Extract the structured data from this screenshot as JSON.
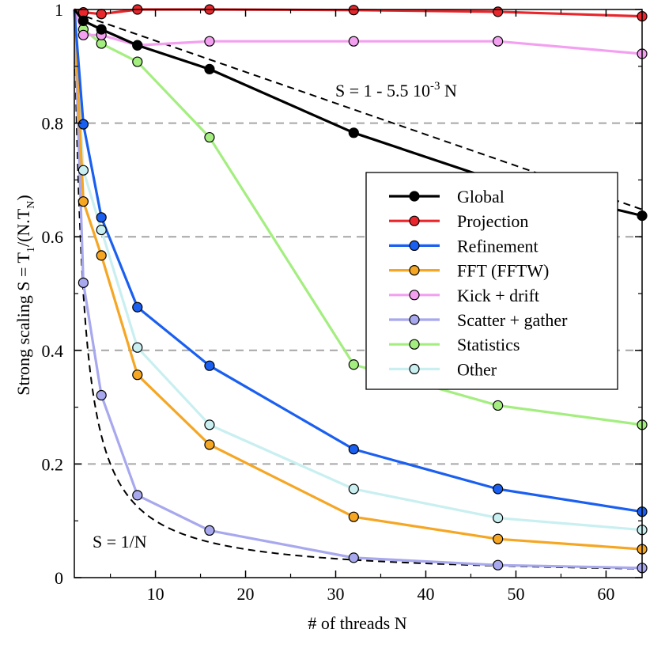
{
  "chart_data": {
    "type": "line",
    "title": "",
    "xlabel": "# of threads N",
    "ylabel": "Strong scaling S = T",
    "ylabel_sub1": "1",
    "ylabel_mid": "/(N.T",
    "ylabel_sub2": "N",
    "ylabel_end": ")",
    "xlim": [
      1,
      64
    ],
    "ylim": [
      0,
      1
    ],
    "xticks": [
      10,
      20,
      30,
      40,
      50,
      60
    ],
    "yticks": [
      0,
      0.2,
      0.4,
      0.6,
      0.8,
      1
    ],
    "ytick_labels": [
      "0",
      "0.2",
      "0.4",
      "0.6",
      "0.8",
      "1"
    ],
    "grid": "dashed horizontal at 0.2, 0.4, 0.6, 0.8",
    "legend_placement": "center-right",
    "x": [
      1,
      2,
      4,
      8,
      16,
      32,
      48,
      64
    ],
    "series": [
      {
        "name": "Global",
        "color": "#000000",
        "width": 3.2,
        "values": [
          1.0,
          0.98,
          0.965,
          0.937,
          0.895,
          0.783,
          0.698,
          0.637
        ]
      },
      {
        "name": "Projection",
        "color": "#e8262b",
        "width": 3.2,
        "values": [
          1.0,
          0.995,
          0.992,
          1.0,
          1.0,
          0.999,
          0.996,
          0.988
        ]
      },
      {
        "name": "Refinement",
        "color": "#1a5ff0",
        "width": 3.2,
        "values": [
          1.0,
          0.798,
          0.634,
          0.476,
          0.373,
          0.226,
          0.156,
          0.116
        ]
      },
      {
        "name": "FFT (FFTW)",
        "color": "#f5a623",
        "width": 3.2,
        "values": [
          1.0,
          0.662,
          0.567,
          0.357,
          0.234,
          0.107,
          0.068,
          0.05
        ]
      },
      {
        "name": "Kick + drift",
        "color": "#f3a0f0",
        "width": 3.2,
        "values": [
          1.0,
          0.955,
          0.955,
          0.937,
          0.944,
          0.944,
          0.944,
          0.922
        ]
      },
      {
        "name": "Scatter + gather",
        "color": "#a8a8ee",
        "width": 3.2,
        "values": [
          1.0,
          0.519,
          0.321,
          0.145,
          0.083,
          0.035,
          0.022,
          0.017
        ]
      },
      {
        "name": "Statistics",
        "color": "#a4ee80",
        "width": 3.2,
        "values": [
          1.0,
          0.965,
          0.94,
          0.908,
          0.775,
          0.375,
          0.303,
          0.269
        ]
      },
      {
        "name": "Other",
        "color": "#c9eff0",
        "width": 3.2,
        "values": [
          1.0,
          0.717,
          0.612,
          0.405,
          0.269,
          0.156,
          0.105,
          0.084
        ]
      }
    ],
    "reference_lines": [
      {
        "label": "S = 1 - 5.5 10",
        "sup": "-3",
        "label_end": " N",
        "kind": "linear",
        "slope": -0.0055
      },
      {
        "label": "S = 1/N",
        "kind": "inverse"
      }
    ]
  }
}
